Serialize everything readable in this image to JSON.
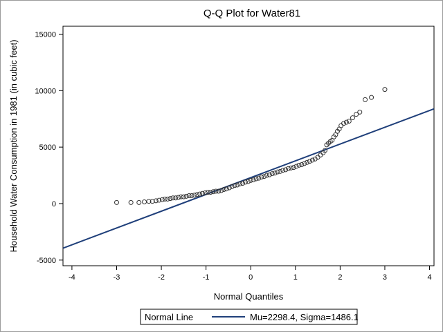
{
  "chart_data": {
    "type": "scatter",
    "title": "Q-Q Plot for Water81",
    "xlabel": "Normal Quantiles",
    "ylabel": "Household Water Consumption in 1981 (in cubic feet)",
    "xlim": [
      -4.2,
      4.1
    ],
    "ylim": [
      -5500,
      15700
    ],
    "x_ticks": [
      -4,
      -3,
      -2,
      -1,
      0,
      1,
      2,
      3,
      4
    ],
    "y_ticks": [
      -5000,
      0,
      5000,
      10000,
      15000
    ],
    "grid": false,
    "legend_position": "bottom",
    "reference_line": {
      "name": "Normal Line",
      "label": "Mu=2298.4, Sigma=1486.1",
      "mu": 2298.4,
      "sigma": 1486.1,
      "color": "#1f3f7a"
    },
    "marker_color": "#333333",
    "series": [
      {
        "points": [
          [
            -3.0,
            100
          ],
          [
            -2.68,
            100
          ],
          [
            -2.5,
            100
          ],
          [
            -2.38,
            150
          ],
          [
            -2.28,
            200
          ],
          [
            -2.2,
            200
          ],
          [
            -2.12,
            250
          ],
          [
            -2.05,
            300
          ],
          [
            -1.98,
            350
          ],
          [
            -1.92,
            400
          ],
          [
            -1.86,
            400
          ],
          [
            -1.8,
            450
          ],
          [
            -1.74,
            500
          ],
          [
            -1.68,
            500
          ],
          [
            -1.62,
            550
          ],
          [
            -1.56,
            600
          ],
          [
            -1.5,
            600
          ],
          [
            -1.44,
            650
          ],
          [
            -1.38,
            700
          ],
          [
            -1.32,
            700
          ],
          [
            -1.26,
            750
          ],
          [
            -1.2,
            800
          ],
          [
            -1.14,
            850
          ],
          [
            -1.08,
            900
          ],
          [
            -1.02,
            950
          ],
          [
            -0.96,
            1000
          ],
          [
            -0.9,
            1000
          ],
          [
            -0.84,
            1050
          ],
          [
            -0.78,
            1100
          ],
          [
            -0.72,
            1100
          ],
          [
            -0.66,
            1150
          ],
          [
            -0.6,
            1250
          ],
          [
            -0.54,
            1300
          ],
          [
            -0.48,
            1400
          ],
          [
            -0.42,
            1500
          ],
          [
            -0.36,
            1600
          ],
          [
            -0.3,
            1650
          ],
          [
            -0.24,
            1750
          ],
          [
            -0.18,
            1800
          ],
          [
            -0.12,
            1900
          ],
          [
            -0.06,
            1950
          ],
          [
            0.0,
            2050
          ],
          [
            0.06,
            2100
          ],
          [
            0.12,
            2200
          ],
          [
            0.18,
            2250
          ],
          [
            0.24,
            2350
          ],
          [
            0.3,
            2400
          ],
          [
            0.36,
            2500
          ],
          [
            0.42,
            2550
          ],
          [
            0.48,
            2650
          ],
          [
            0.54,
            2700
          ],
          [
            0.6,
            2800
          ],
          [
            0.66,
            2850
          ],
          [
            0.72,
            2950
          ],
          [
            0.78,
            3000
          ],
          [
            0.84,
            3100
          ],
          [
            0.9,
            3150
          ],
          [
            0.96,
            3200
          ],
          [
            1.02,
            3300
          ],
          [
            1.08,
            3400
          ],
          [
            1.14,
            3450
          ],
          [
            1.2,
            3550
          ],
          [
            1.26,
            3650
          ],
          [
            1.32,
            3750
          ],
          [
            1.38,
            3850
          ],
          [
            1.44,
            3950
          ],
          [
            1.5,
            4100
          ],
          [
            1.56,
            4300
          ],
          [
            1.62,
            4500
          ],
          [
            1.66,
            4700
          ],
          [
            1.7,
            5200
          ],
          [
            1.74,
            5350
          ],
          [
            1.78,
            5500
          ],
          [
            1.82,
            5600
          ],
          [
            1.86,
            5900
          ],
          [
            1.9,
            6100
          ],
          [
            1.94,
            6400
          ],
          [
            1.98,
            6600
          ],
          [
            2.02,
            6900
          ],
          [
            2.08,
            7100
          ],
          [
            2.14,
            7200
          ],
          [
            2.2,
            7300
          ],
          [
            2.28,
            7600
          ],
          [
            2.36,
            7900
          ],
          [
            2.44,
            8100
          ],
          [
            2.56,
            9200
          ],
          [
            2.7,
            9400
          ],
          [
            3.0,
            10100
          ]
        ]
      }
    ]
  }
}
